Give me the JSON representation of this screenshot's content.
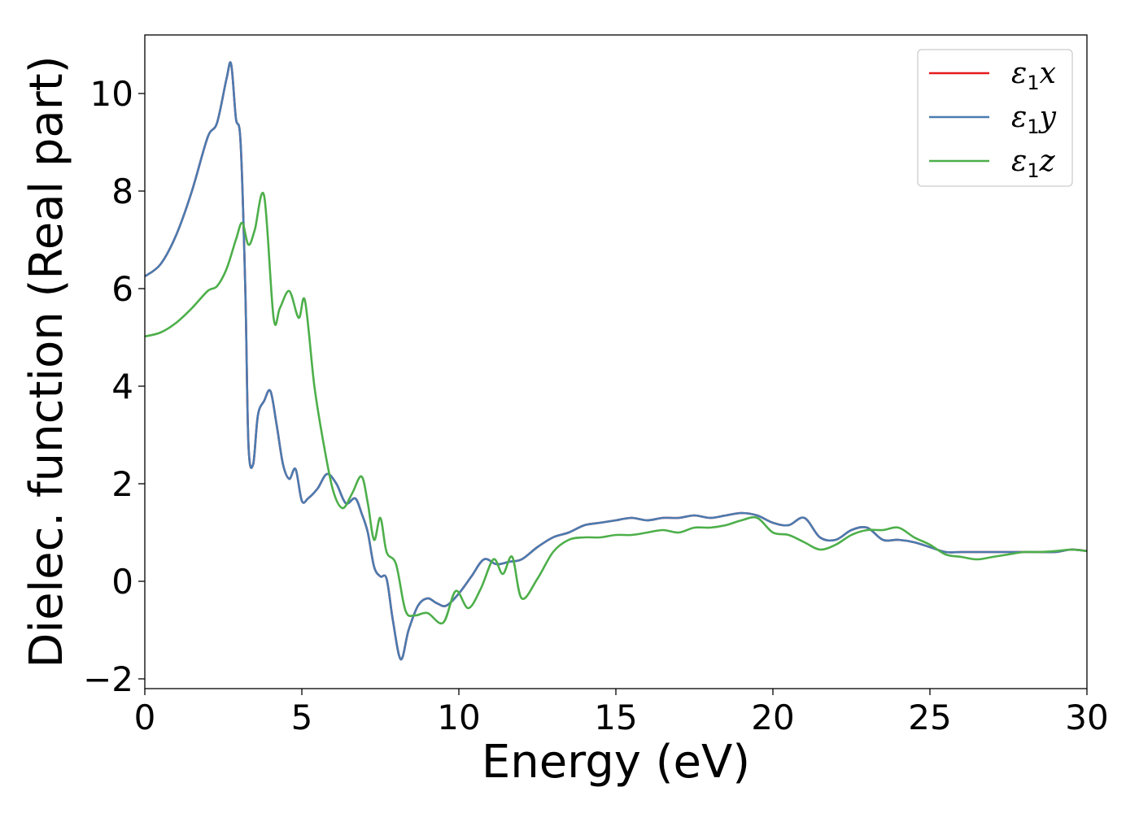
{
  "chart_data": {
    "type": "line",
    "title": "",
    "xlabel": "Energy (eV)",
    "ylabel": "Dielec. function (Real part)",
    "xlim": [
      0,
      30
    ],
    "ylim": [
      -2.2,
      11.2
    ],
    "xticks": [
      0,
      5,
      10,
      15,
      20,
      25,
      30
    ],
    "xtick_labels": [
      "0",
      "5",
      "10",
      "15",
      "20",
      "25",
      "30"
    ],
    "yticks": [
      -2,
      0,
      2,
      4,
      6,
      8,
      10
    ],
    "ytick_labels": [
      "−2",
      "0",
      "2",
      "4",
      "6",
      "8",
      "10"
    ],
    "grid": false,
    "legend_position": "top-right",
    "series": [
      {
        "name": "ε1x",
        "symbol": "ε",
        "subscript": "1",
        "suffix": "x",
        "color": "#e41a1c",
        "x": [
          0,
          0.5,
          1,
          1.5,
          2,
          2.3,
          2.6,
          2.75,
          2.9,
          3.05,
          3.2,
          3.3,
          3.45,
          3.6,
          3.8,
          4.0,
          4.2,
          4.4,
          4.6,
          4.8,
          5.0,
          5.2,
          5.5,
          5.8,
          6.1,
          6.4,
          6.7,
          6.9,
          7.1,
          7.3,
          7.5,
          7.7,
          7.9,
          8.15,
          8.4,
          8.7,
          9.0,
          9.3,
          9.6,
          10.0,
          10.4,
          10.8,
          11.2,
          11.6,
          12.0,
          12.5,
          13.0,
          13.5,
          14.0,
          14.5,
          15.0,
          15.5,
          16.0,
          16.5,
          17.0,
          17.5,
          18.0,
          18.5,
          19.0,
          19.5,
          20.0,
          20.5,
          21.0,
          21.5,
          22.0,
          22.5,
          23.0,
          23.5,
          24.0,
          24.5,
          25.0,
          25.5,
          26.0,
          26.5,
          27.0,
          27.5,
          28.0,
          28.5,
          29.0,
          29.5,
          30.0
        ],
        "y": [
          6.25,
          6.5,
          7.1,
          8.0,
          9.1,
          9.4,
          10.3,
          10.6,
          9.5,
          9.0,
          6.0,
          2.8,
          2.4,
          3.4,
          3.7,
          3.9,
          3.2,
          2.4,
          2.1,
          2.3,
          1.65,
          1.7,
          1.9,
          2.2,
          2.0,
          1.6,
          1.7,
          1.4,
          1.0,
          0.3,
          0.1,
          0.05,
          -0.8,
          -1.6,
          -1.0,
          -0.5,
          -0.35,
          -0.45,
          -0.5,
          -0.25,
          0.1,
          0.45,
          0.35,
          0.4,
          0.45,
          0.7,
          0.9,
          1.0,
          1.15,
          1.2,
          1.25,
          1.3,
          1.25,
          1.3,
          1.3,
          1.35,
          1.3,
          1.35,
          1.4,
          1.35,
          1.2,
          1.15,
          1.3,
          0.9,
          0.85,
          1.05,
          1.1,
          0.85,
          0.85,
          0.8,
          0.7,
          0.6,
          0.6,
          0.6,
          0.6,
          0.6,
          0.6,
          0.6,
          0.6,
          0.65,
          0.62
        ]
      },
      {
        "name": "ε1y",
        "symbol": "ε",
        "subscript": "1",
        "suffix": "y",
        "color": "#4a7bb0",
        "x": [
          0,
          0.5,
          1,
          1.5,
          2,
          2.3,
          2.6,
          2.75,
          2.9,
          3.05,
          3.2,
          3.3,
          3.45,
          3.6,
          3.8,
          4.0,
          4.2,
          4.4,
          4.6,
          4.8,
          5.0,
          5.2,
          5.5,
          5.8,
          6.1,
          6.4,
          6.7,
          6.9,
          7.1,
          7.3,
          7.5,
          7.7,
          7.9,
          8.15,
          8.4,
          8.7,
          9.0,
          9.3,
          9.6,
          10.0,
          10.4,
          10.8,
          11.2,
          11.6,
          12.0,
          12.5,
          13.0,
          13.5,
          14.0,
          14.5,
          15.0,
          15.5,
          16.0,
          16.5,
          17.0,
          17.5,
          18.0,
          18.5,
          19.0,
          19.5,
          20.0,
          20.5,
          21.0,
          21.5,
          22.0,
          22.5,
          23.0,
          23.5,
          24.0,
          24.5,
          25.0,
          25.5,
          26.0,
          26.5,
          27.0,
          27.5,
          28.0,
          28.5,
          29.0,
          29.5,
          30.0
        ],
        "y": [
          6.25,
          6.5,
          7.1,
          8.0,
          9.1,
          9.4,
          10.3,
          10.6,
          9.5,
          9.0,
          6.0,
          2.8,
          2.4,
          3.4,
          3.7,
          3.9,
          3.2,
          2.4,
          2.1,
          2.3,
          1.65,
          1.7,
          1.9,
          2.2,
          2.0,
          1.6,
          1.7,
          1.4,
          1.0,
          0.3,
          0.1,
          0.05,
          -0.8,
          -1.6,
          -1.0,
          -0.5,
          -0.35,
          -0.45,
          -0.5,
          -0.25,
          0.1,
          0.45,
          0.35,
          0.4,
          0.45,
          0.7,
          0.9,
          1.0,
          1.15,
          1.2,
          1.25,
          1.3,
          1.25,
          1.3,
          1.3,
          1.35,
          1.3,
          1.35,
          1.4,
          1.35,
          1.2,
          1.15,
          1.3,
          0.9,
          0.85,
          1.05,
          1.1,
          0.85,
          0.85,
          0.8,
          0.7,
          0.6,
          0.6,
          0.6,
          0.6,
          0.6,
          0.6,
          0.6,
          0.6,
          0.65,
          0.62
        ]
      },
      {
        "name": "ε1z",
        "symbol": "ε",
        "subscript": "1",
        "suffix": "z",
        "color": "#4daf4a",
        "x": [
          0,
          0.5,
          1,
          1.5,
          2,
          2.3,
          2.6,
          2.9,
          3.1,
          3.3,
          3.5,
          3.8,
          4.1,
          4.3,
          4.6,
          4.9,
          5.1,
          5.4,
          5.7,
          6.0,
          6.3,
          6.6,
          6.9,
          7.1,
          7.3,
          7.5,
          7.7,
          8.0,
          8.3,
          8.6,
          9.0,
          9.5,
          9.9,
          10.3,
          10.7,
          11.1,
          11.4,
          11.7,
          12.0,
          12.5,
          13.0,
          13.5,
          14.0,
          14.5,
          15.0,
          15.5,
          16.0,
          16.5,
          17.0,
          17.5,
          18.0,
          18.5,
          19.0,
          19.5,
          20.0,
          20.5,
          21.0,
          21.5,
          22.0,
          22.5,
          23.0,
          23.5,
          24.0,
          24.5,
          25.0,
          25.5,
          26.0,
          26.5,
          27.0,
          27.5,
          28.0,
          28.5,
          29.0,
          29.5,
          30.0
        ],
        "y": [
          5.02,
          5.1,
          5.3,
          5.6,
          5.95,
          6.05,
          6.4,
          7.0,
          7.35,
          6.9,
          7.2,
          7.9,
          5.4,
          5.6,
          5.95,
          5.4,
          5.75,
          4.0,
          2.8,
          1.85,
          1.5,
          1.8,
          2.15,
          1.6,
          0.85,
          1.3,
          0.6,
          0.35,
          -0.6,
          -0.7,
          -0.65,
          -0.85,
          -0.2,
          -0.55,
          -0.15,
          0.45,
          0.15,
          0.5,
          -0.35,
          0.05,
          0.6,
          0.85,
          0.9,
          0.9,
          0.95,
          0.95,
          1.0,
          1.05,
          1.0,
          1.1,
          1.1,
          1.15,
          1.25,
          1.3,
          1.0,
          0.95,
          0.8,
          0.65,
          0.75,
          0.95,
          1.05,
          1.05,
          1.1,
          0.9,
          0.75,
          0.55,
          0.5,
          0.45,
          0.5,
          0.55,
          0.6,
          0.6,
          0.62,
          0.65,
          0.62
        ]
      }
    ]
  }
}
